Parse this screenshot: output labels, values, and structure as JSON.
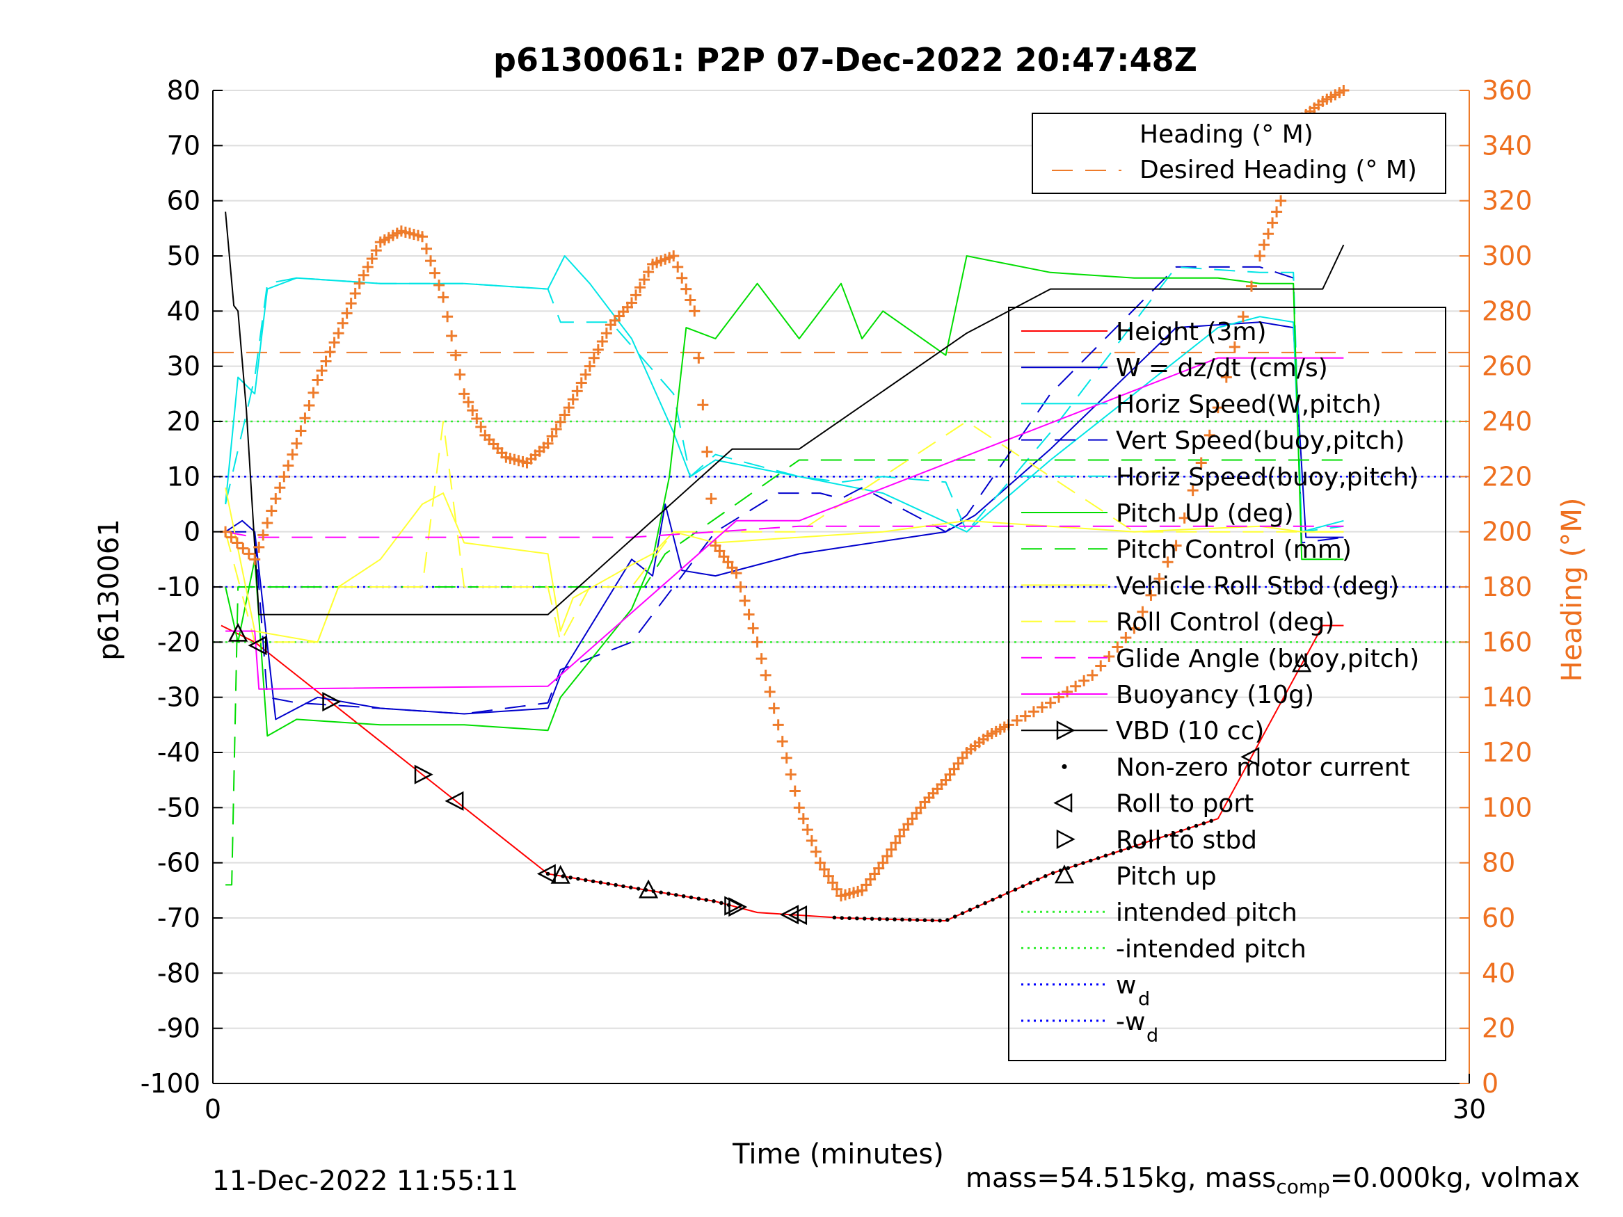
{
  "chart_data": {
    "type": "line",
    "title": "p6130061: P2P 07-Dec-2022 20:47:48Z",
    "xlabel": "Time (minutes)",
    "ylabel_left": "p6130061",
    "ylabel_right": "Heading (°M)",
    "xlim": [
      0,
      30
    ],
    "ylim_left": [
      -100,
      80
    ],
    "ylim_right": [
      0,
      360
    ],
    "x_ticks": [
      "0",
      "30"
    ],
    "y_ticks_left": [
      "80",
      "70",
      "60",
      "50",
      "40",
      "30",
      "20",
      "10",
      "0",
      "-10",
      "-20",
      "-30",
      "-40",
      "-50",
      "-60",
      "-70",
      "-80",
      "-90",
      "-100"
    ],
    "y_ticks_right": [
      "360",
      "340",
      "320",
      "300",
      "280",
      "260",
      "240",
      "220",
      "200",
      "180",
      "160",
      "140",
      "120",
      "100",
      "80",
      "60",
      "40",
      "20",
      "0"
    ],
    "grid": true,
    "colors": {
      "heading": "#EE7B2A",
      "height": "#FF0000",
      "w": "#0000CC",
      "horiz_speed": "#00E5E5",
      "pitch": "#00DD00",
      "roll": "#FFFF33",
      "glide": "#FF00FF",
      "vbd": "#000000",
      "wd": "#0000FF",
      "intended_pitch": "#33EE33"
    },
    "legend_heading": {
      "placement": "top-right",
      "entries": [
        "Heading (° M)",
        "Desired Heading (° M)"
      ]
    },
    "legend_main": {
      "placement": "right",
      "entries": [
        "Height (3m)",
        "W = dz/dt (cm/s)",
        "Horiz Speed(W,pitch)",
        "Vert Speed(buoy,pitch)",
        "Horiz Speed(buoy,pitch)",
        "Pitch Up (deg)",
        "Pitch Control (mm)",
        "Vehicle Roll Stbd (deg)",
        "Roll Control (deg)",
        "Glide Angle (buoy,pitch)",
        "Buoyancy (10g)",
        "VBD (10 cc)",
        "Non-zero motor current",
        "Roll to port",
        "Roll to stbd",
        "Pitch up",
        "intended pitch",
        "-intended pitch",
        "w",
        "-w"
      ],
      "subscript": "d"
    },
    "desired_heading": 265,
    "intended_pitch": 20,
    "w_d": 10,
    "series": [
      {
        "name": "Height (3m)",
        "x": [
          0.2,
          1.0,
          8.0,
          12.0,
          13.0,
          15.0,
          17.5,
          20.0,
          24.0,
          26.5,
          27.0
        ],
        "values": [
          -17,
          -20,
          -62,
          -67,
          -69,
          -70,
          -70.5,
          -62,
          -52,
          -17,
          -17
        ]
      },
      {
        "name": "W = dz/dt (cm/s)",
        "x": [
          0.3,
          0.7,
          1.0,
          1.5,
          2.5,
          4,
          6,
          8,
          8.3,
          10,
          10.5,
          10.8,
          11.2,
          12,
          14,
          17.5,
          18.2,
          20,
          23,
          25,
          25.8,
          26.1,
          27
        ],
        "values": [
          0,
          2,
          0,
          -34,
          -30,
          -32,
          -33,
          -32,
          -26,
          -5,
          -8,
          5,
          -7,
          -8,
          -4,
          0,
          3,
          15,
          37,
          38,
          37,
          -1,
          -1
        ]
      },
      {
        "name": "Horiz Speed(W,pitch)",
        "x": [
          0.3,
          0.6,
          1.0,
          1.3,
          2.0,
          4,
          6,
          8,
          8.4,
          9,
          10,
          11,
          11.4,
          12,
          14,
          16,
          18,
          20,
          24,
          25,
          25.8,
          26,
          27
        ],
        "values": [
          5,
          28,
          25,
          44,
          46,
          45,
          45,
          44,
          50,
          45,
          35,
          18,
          10,
          13,
          10,
          7,
          0,
          13,
          37,
          39,
          38,
          0,
          2
        ]
      },
      {
        "name": "Vert Speed(buoy,pitch)",
        "x": [
          0.3,
          1.0,
          1.3,
          2,
          4,
          6,
          8,
          8.3,
          10,
          11,
          12,
          13.5,
          14.5,
          15,
          15.5,
          17.5,
          18,
          20,
          23,
          25,
          25.8,
          26,
          27
        ],
        "values": [
          0,
          0,
          -30,
          -31,
          -32,
          -33,
          -31,
          -25,
          -20,
          -10,
          0,
          7,
          7,
          6,
          8,
          0,
          3,
          25,
          48,
          48,
          46,
          -2,
          -1
        ]
      },
      {
        "name": "Horiz Speed(buoy,pitch)",
        "x": [
          0.3,
          1.0,
          1.3,
          2,
          4,
          6,
          8,
          8.3,
          9.5,
          11,
          11.4,
          12,
          14,
          15,
          16,
          17.5,
          18,
          20,
          23,
          25,
          25.8,
          26,
          27
        ],
        "values": [
          5,
          28,
          45,
          46,
          45,
          45,
          44,
          38,
          38,
          25,
          10,
          14,
          10,
          9,
          10,
          9,
          0,
          18,
          48,
          47,
          47,
          0,
          1
        ]
      },
      {
        "name": "Pitch Up (deg)",
        "x": [
          0.3,
          0.6,
          1.0,
          1.3,
          2,
          4,
          6,
          8,
          8.3,
          10,
          10.5,
          10.9,
          11.3,
          12,
          13,
          14,
          15,
          15.5,
          16,
          17.5,
          18,
          20,
          22,
          24,
          25,
          25.8,
          26,
          27
        ],
        "values": [
          -10,
          -20,
          -5,
          -37,
          -34,
          -35,
          -35,
          -36,
          -30,
          -14,
          -5,
          10,
          37,
          35,
          45,
          35,
          45,
          35,
          40,
          32,
          50,
          47,
          46,
          46,
          45,
          45,
          -5,
          -5
        ]
      },
      {
        "name": "Pitch Control (mm)",
        "x": [
          0.3,
          0.45,
          0.6,
          8.3,
          10.3,
          10.8,
          14,
          20,
          25,
          25.8,
          27
        ],
        "values": [
          -64,
          -64,
          -10,
          -10,
          -10,
          -4,
          13,
          13,
          13,
          13,
          13
        ]
      },
      {
        "name": "Vehicle Roll Stbd (deg)",
        "x": [
          0.3,
          1.0,
          2.5,
          3.0,
          4,
          5,
          5.5,
          6,
          8,
          8.3,
          8.6,
          10,
          10.5,
          11,
          12,
          14,
          16,
          18,
          20,
          22,
          25,
          26,
          27
        ],
        "values": [
          8,
          -18,
          -20,
          -10,
          -5,
          5,
          7,
          -2,
          -4,
          -18,
          -12,
          -6,
          -4,
          0,
          -2,
          -1,
          0,
          2,
          1,
          0,
          1,
          0,
          0
        ]
      },
      {
        "name": "Roll Control (deg)",
        "x": [
          0.3,
          1.0,
          2.5,
          3.0,
          5,
          5.5,
          6,
          8,
          8.3,
          9,
          10,
          11,
          14,
          18,
          22,
          25,
          26,
          27
        ],
        "values": [
          0,
          -20,
          -20,
          -10,
          -10,
          20,
          -10,
          -10,
          -20,
          -10,
          -10,
          0,
          0,
          20,
          0,
          0,
          0,
          0
        ]
      },
      {
        "name": "Glide Angle (buoy,pitch)",
        "x": [
          0.3,
          1.0,
          6,
          10,
          12,
          14,
          18,
          22,
          25,
          26.5,
          27
        ],
        "values": [
          0,
          -1,
          -1,
          -1,
          0,
          1,
          1,
          1,
          1,
          1,
          1
        ]
      },
      {
        "name": "Buoyancy (10g)",
        "x": [
          0.3,
          1.0,
          1.1,
          8.0,
          12.5,
          14.0,
          24,
          25,
          26,
          27
        ],
        "values": [
          -18,
          -18,
          -28.5,
          -28,
          2,
          2,
          31.5,
          31.5,
          31.5,
          31.5
        ]
      },
      {
        "name": "VBD (10 cc)",
        "x": [
          0.3,
          0.5,
          0.6,
          0.8,
          1.1,
          8.0,
          10.2,
          12.4,
          14.0,
          18.0,
          20.0,
          24.0,
          25.5,
          26.0,
          26.5,
          27.0
        ],
        "values": [
          58,
          41,
          40,
          22,
          -15,
          -15,
          0,
          15,
          15,
          36,
          44,
          44,
          44,
          44,
          44,
          52
        ]
      }
    ],
    "heading_series": {
      "name": "Heading (° M)",
      "x": [
        0.3,
        1.0,
        1.5,
        2.0,
        2.5,
        3.0,
        3.5,
        4.0,
        4.5,
        5.0,
        5.5,
        6.0,
        6.5,
        7.0,
        7.5,
        8.0,
        8.5,
        9.0,
        9.5,
        10.0,
        10.5,
        11.0,
        11.5,
        12.0,
        12.5,
        13.0,
        13.5,
        14.0,
        14.5,
        15.0,
        15.5,
        16.0,
        16.5,
        17.0,
        17.5,
        18.0,
        18.5,
        19.0,
        20.0,
        21.0,
        22.0,
        23.0,
        24.0,
        25.0,
        25.5,
        26.0,
        26.5,
        27.0
      ],
      "values": [
        200,
        190,
        212,
        232,
        255,
        272,
        290,
        305,
        309,
        307,
        285,
        250,
        235,
        227,
        225,
        232,
        245,
        260,
        275,
        283,
        297,
        300,
        280,
        195,
        185,
        160,
        130,
        100,
        80,
        68,
        70,
        80,
        92,
        102,
        110,
        120,
        126,
        130,
        138,
        148,
        165,
        195,
        245,
        300,
        320,
        350,
        356,
        360
      ]
    }
  },
  "footer": {
    "timestamp": "11-Dec-2022 11:55:11",
    "mass_pre": "mass=54.515kg, mass",
    "mass_sub": "comp",
    "mass_post": "=0.000kg, volmax"
  }
}
